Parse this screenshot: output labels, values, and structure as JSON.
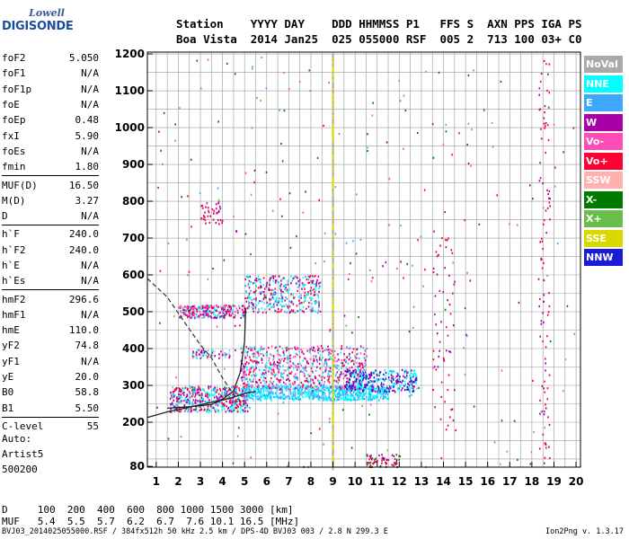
{
  "logo": {
    "line1": "Lowell",
    "line2": "DIGISONDE"
  },
  "header": {
    "labels": "Station    YYYY DAY    DDD HHMMSS P1   FFS S  AXN PPS IGA PS",
    "values": "Boa Vista  2014 Jan25  025 055000 RSF  005 2  713 100 03+ C0"
  },
  "params": [
    {
      "name": "foF2",
      "value": "5.050"
    },
    {
      "name": "foF1",
      "value": "N/A"
    },
    {
      "name": "foF1p",
      "value": "N/A"
    },
    {
      "name": "foE",
      "value": "N/A"
    },
    {
      "name": "foEp",
      "value": "0.48"
    },
    {
      "name": "fxI",
      "value": "5.90"
    },
    {
      "name": "foEs",
      "value": "N/A"
    },
    {
      "name": "fmin",
      "value": "1.80"
    },
    {
      "name": "MUF(D)",
      "value": "16.50"
    },
    {
      "name": "M(D)",
      "value": "3.27"
    },
    {
      "name": "D",
      "value": "N/A"
    },
    {
      "name": "h`F",
      "value": "240.0"
    },
    {
      "name": "h`F2",
      "value": "240.0"
    },
    {
      "name": "h`E",
      "value": "N/A"
    },
    {
      "name": "h`Es",
      "value": "N/A"
    },
    {
      "name": "hmF2",
      "value": "296.6"
    },
    {
      "name": "hmF1",
      "value": "N/A"
    },
    {
      "name": "hmE",
      "value": "110.0"
    },
    {
      "name": "yF2",
      "value": "74.8"
    },
    {
      "name": "yF1",
      "value": "N/A"
    },
    {
      "name": "yE",
      "value": "20.0"
    },
    {
      "name": "B0",
      "value": "58.8"
    },
    {
      "name": "B1",
      "value": "5.50"
    },
    {
      "name": "C-level",
      "value": "55"
    }
  ],
  "auto": {
    "line1": "Auto:",
    "line2": "Artist5",
    "line3": "500200"
  },
  "muf_table": {
    "d_line": "D     100  200  400  600  800 1000 1500 3000 [km]",
    "muf_line": "MUF   5.4  5.5  5.7  6.2  6.7  7.6 10.1 16.5 [MHz]"
  },
  "footer": {
    "text": "BVJ03_2014025055000.RSF / 384fx512h 50 kHz 2.5 km / DPS-4D BVJ03 003 / 2.8 N 299.3 E",
    "version": "Ion2Png v. 1.3.17"
  },
  "legend": [
    {
      "label": "NoVal",
      "color": "#a9a9a9"
    },
    {
      "label": "NNE",
      "color": "#00ffff"
    },
    {
      "label": "E",
      "color": "#3ea8ff"
    },
    {
      "label": "W",
      "color": "#a800a8"
    },
    {
      "label": "Vo-",
      "color": "#ff4db8"
    },
    {
      "label": "Vo+",
      "color": "#ff0033"
    },
    {
      "label": "SSW",
      "color": "#ffb0b0"
    },
    {
      "label": "X-",
      "color": "#007a00"
    },
    {
      "label": "X+",
      "color": "#6abf4b"
    },
    {
      "label": "SSE",
      "color": "#d9d900"
    },
    {
      "label": "NNW",
      "color": "#1a1ad9"
    }
  ],
  "chart_data": {
    "type": "scatter",
    "xlabel": "",
    "ylabel": "",
    "xlim": [
      0.6,
      20.2
    ],
    "ylim": [
      78,
      1205
    ],
    "x_ticks": [
      1,
      2,
      3,
      4,
      5,
      6,
      7,
      8,
      9,
      10,
      11,
      12,
      13,
      14,
      15,
      16,
      17,
      18,
      19,
      20
    ],
    "y_ticks": [
      80,
      200,
      300,
      400,
      500,
      600,
      700,
      800,
      900,
      1000,
      1100,
      1200
    ],
    "grid": true,
    "echo_clusters": [
      {
        "x_range": [
          1.6,
          5.2
        ],
        "y_range": [
          230,
          300
        ],
        "colors": [
          "#ff0033",
          "#a800a8",
          "#00ffff",
          "#3ea8ff"
        ],
        "count": 520
      },
      {
        "x_range": [
          5.0,
          11.5
        ],
        "y_range": [
          262,
          300
        ],
        "colors": [
          "#00ffff",
          "#3ea8ff"
        ],
        "count": 700
      },
      {
        "x_range": [
          4.8,
          10.5
        ],
        "y_range": [
          290,
          410
        ],
        "colors": [
          "#ff0033",
          "#a800a8",
          "#00ffff",
          "#3ea8ff",
          "#ff4db8"
        ],
        "count": 700
      },
      {
        "x_range": [
          9.5,
          12.8
        ],
        "y_range": [
          285,
          345
        ],
        "colors": [
          "#1a1ad9",
          "#a800a8",
          "#00ffff"
        ],
        "count": 320
      },
      {
        "x_range": [
          2.0,
          5.0
        ],
        "y_range": [
          485,
          520
        ],
        "colors": [
          "#ff0033",
          "#a800a8",
          "#ff4db8",
          "#00ffff"
        ],
        "count": 280
      },
      {
        "x_range": [
          5.0,
          8.4
        ],
        "y_range": [
          500,
          600
        ],
        "colors": [
          "#00ffff",
          "#3ea8ff",
          "#ff0033",
          "#a800a8"
        ],
        "count": 360
      },
      {
        "x_range": [
          2.6,
          4.3
        ],
        "y_range": [
          375,
          400
        ],
        "colors": [
          "#00ffff",
          "#ffb0b0",
          "#a800a8"
        ],
        "count": 70
      },
      {
        "x_range": [
          3.0,
          4.0
        ],
        "y_range": [
          740,
          800
        ],
        "colors": [
          "#a800a8",
          "#ff0033"
        ],
        "count": 40
      },
      {
        "x_range": [
          13.5,
          14.5
        ],
        "y_range": [
          180,
          780
        ],
        "colors": [
          "#ff0033",
          "#a800a8"
        ],
        "count": 60
      },
      {
        "x_range": [
          18.3,
          18.8
        ],
        "y_range": [
          80,
          1200
        ],
        "colors": [
          "#a800a8",
          "#ff0033"
        ],
        "count": 90
      },
      {
        "x_range": [
          10.5,
          12.0
        ],
        "y_range": [
          80,
          115
        ],
        "colors": [
          "#ff0033",
          "#a800a8",
          "#007a00"
        ],
        "count": 60
      },
      {
        "x_range": [
          1.0,
          20.0
        ],
        "y_range": [
          80,
          1200
        ],
        "colors": [
          "#a800a8",
          "#ff0033",
          "#007a00",
          "#6abf4b",
          "#3ea8ff",
          "#ff4db8"
        ],
        "count": 260
      }
    ],
    "interference_line": {
      "x": 9.0,
      "y_range": [
        80,
        1200
      ],
      "colors": [
        "#d9d900",
        "#a9a9a9"
      ]
    },
    "trace_solid": [
      [
        0.6,
        213
      ],
      [
        1.5,
        228
      ],
      [
        2.5,
        241
      ],
      [
        3.5,
        254
      ],
      [
        4.0,
        260
      ],
      [
        4.5,
        268
      ],
      [
        5.0,
        278
      ],
      [
        5.5,
        284
      ]
    ],
    "trace_lower": [
      [
        1.5,
        238
      ],
      [
        2.5,
        242
      ],
      [
        3.5,
        248
      ],
      [
        4.0,
        262
      ],
      [
        4.5,
        285
      ],
      [
        4.8,
        335
      ],
      [
        5.0,
        420
      ],
      [
        5.05,
        510
      ]
    ],
    "trace_dashed": [
      [
        0.6,
        590
      ],
      [
        1.5,
        540
      ],
      [
        2.3,
        470
      ],
      [
        3.0,
        410
      ],
      [
        3.5,
        375
      ],
      [
        4.0,
        320
      ],
      [
        4.5,
        275
      ],
      [
        5.0,
        248
      ]
    ]
  }
}
